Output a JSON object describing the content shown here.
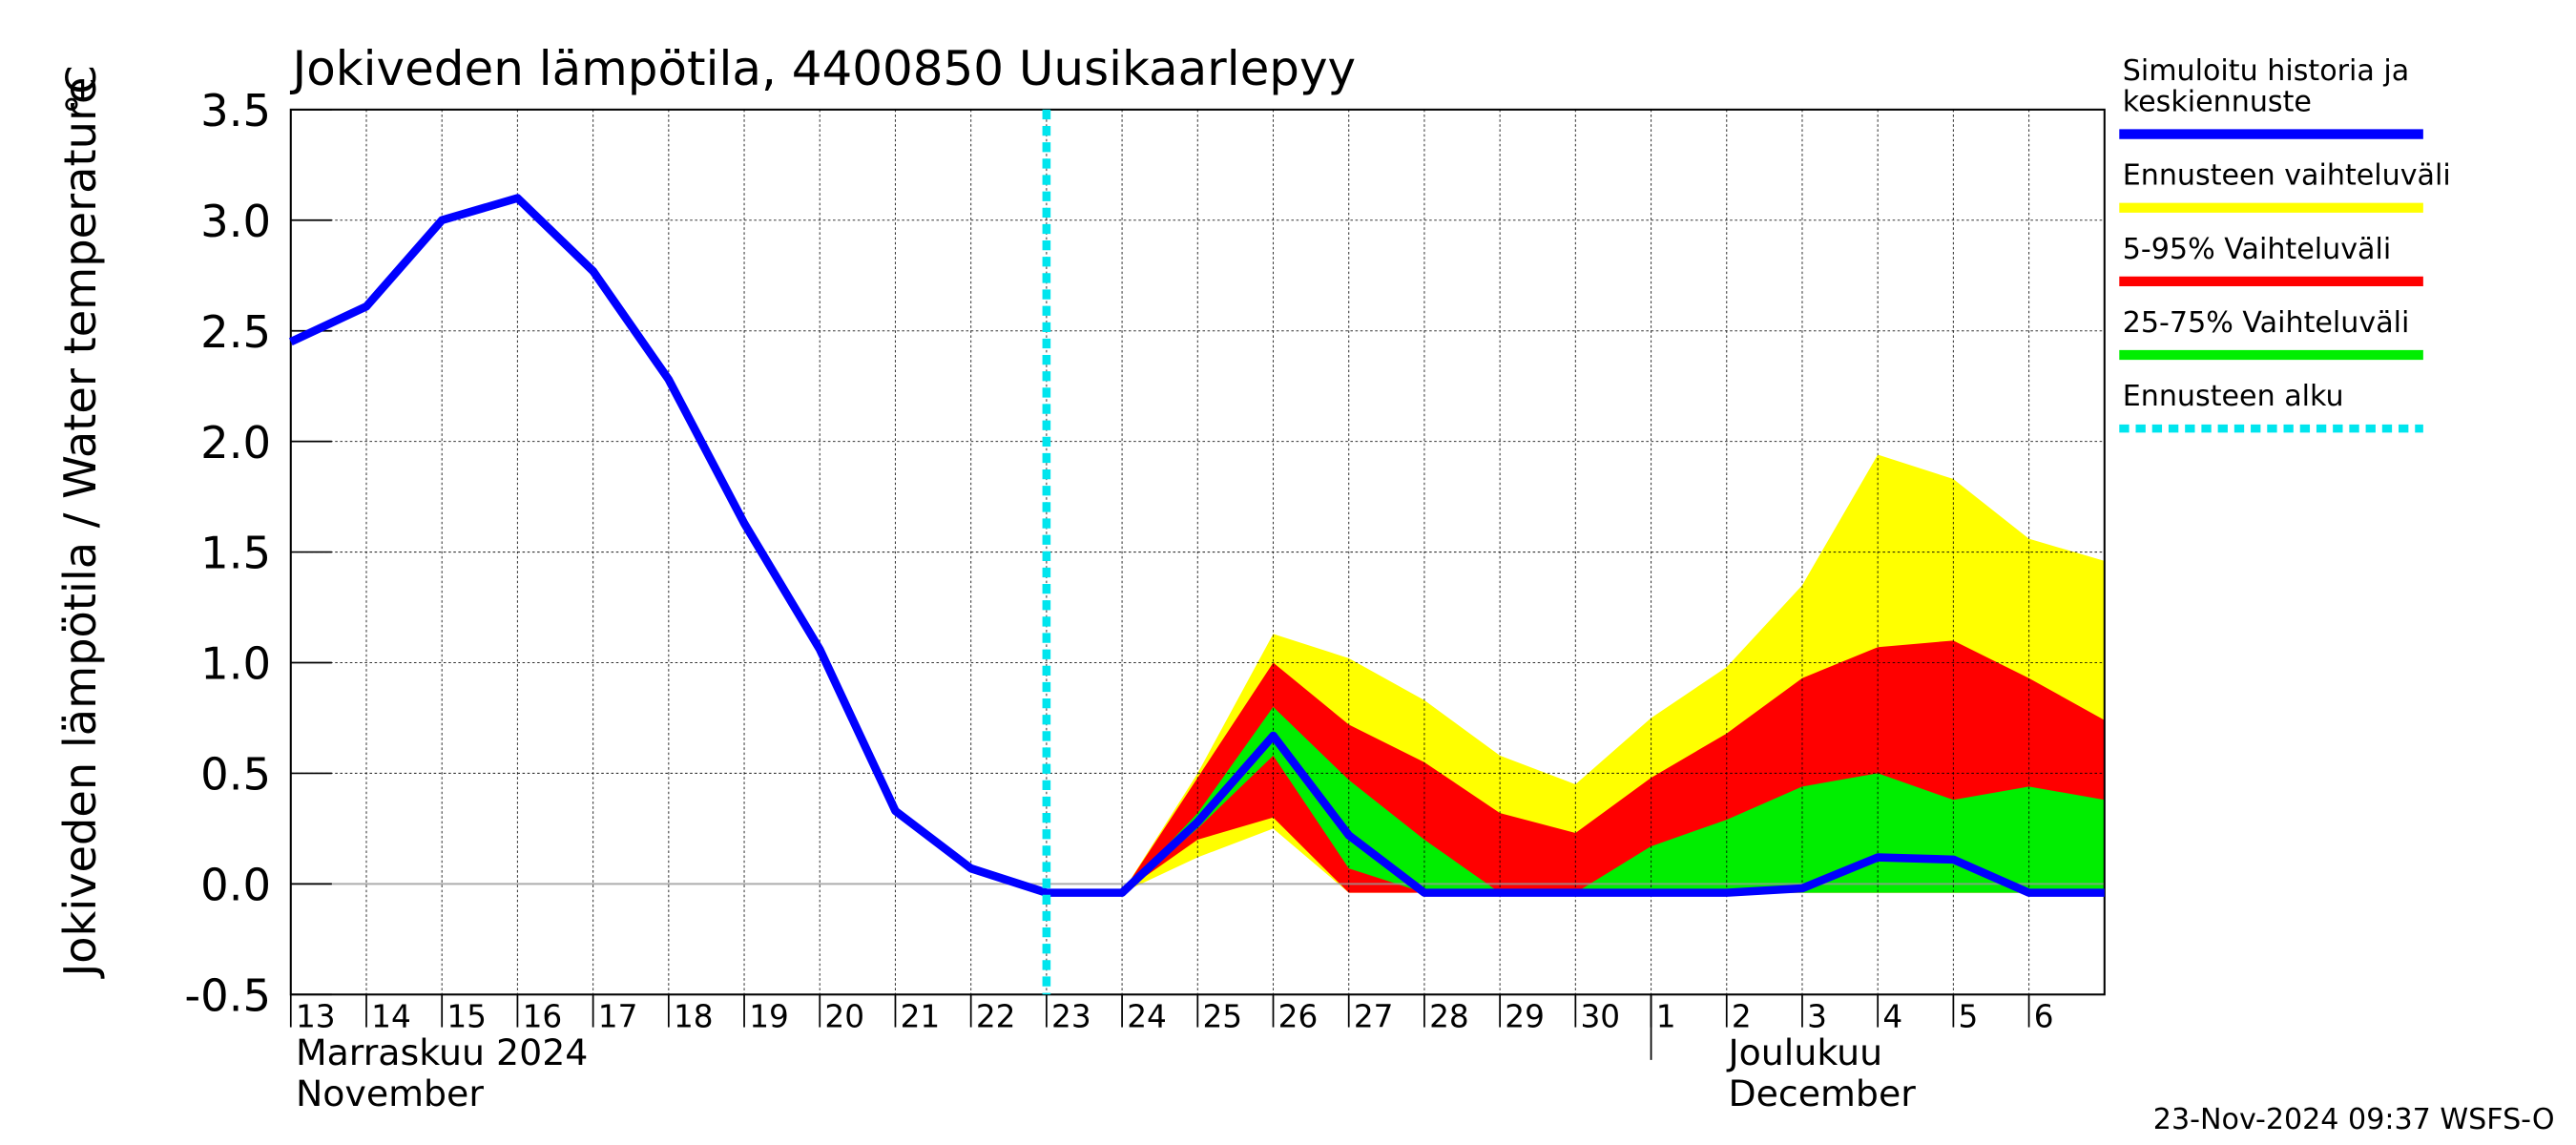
{
  "chart_data": {
    "type": "line-band",
    "title": "Jokiveden lämpötila, 4400850 Uusikaarlepyy",
    "ylabel": "Jokiveden lämpötila / Water temperature",
    "yunit": "°C",
    "month_labels": [
      "Marraskuu 2024",
      "November",
      "Joulukuu",
      "December"
    ],
    "timestamp": "23-Nov-2024 09:37 WSFS-O",
    "x": [
      0,
      1,
      2,
      3,
      4,
      5,
      6,
      7,
      8,
      9,
      10,
      11,
      12,
      13,
      14,
      15,
      16,
      17,
      18,
      19,
      20,
      21,
      22,
      23,
      24
    ],
    "xlim": [
      0,
      24
    ],
    "xticks": [
      {
        "value": 0,
        "label": "13"
      },
      {
        "value": 1,
        "label": "14"
      },
      {
        "value": 2,
        "label": "15"
      },
      {
        "value": 3,
        "label": "16"
      },
      {
        "value": 4,
        "label": "17"
      },
      {
        "value": 5,
        "label": "18"
      },
      {
        "value": 6,
        "label": "19"
      },
      {
        "value": 7,
        "label": "20"
      },
      {
        "value": 8,
        "label": "21"
      },
      {
        "value": 9,
        "label": "22"
      },
      {
        "value": 10,
        "label": "23"
      },
      {
        "value": 11,
        "label": "24"
      },
      {
        "value": 12,
        "label": "25"
      },
      {
        "value": 13,
        "label": "26"
      },
      {
        "value": 14,
        "label": "27"
      },
      {
        "value": 15,
        "label": "28"
      },
      {
        "value": 16,
        "label": "29"
      },
      {
        "value": 17,
        "label": "30"
      },
      {
        "value": 18,
        "label": "1"
      },
      {
        "value": 19,
        "label": "2"
      },
      {
        "value": 20,
        "label": "3"
      },
      {
        "value": 21,
        "label": "4"
      },
      {
        "value": 22,
        "label": "5"
      },
      {
        "value": 23,
        "label": "6"
      }
    ],
    "ylim": [
      -0.5,
      3.5
    ],
    "yticks": [
      -0.5,
      {
        "value": 0,
        "label": "0.0"
      },
      0.5,
      {
        "value": 1,
        "label": "1.0"
      },
      1.5,
      {
        "value": 2,
        "label": "2.0"
      },
      2.5,
      {
        "value": 3,
        "label": "3.0"
      },
      3.5
    ],
    "grid": true,
    "forecast_start": 10,
    "forecast_start_name": "Ennusteen alku",
    "forecast_start_color": "#00e5ee",
    "series": [
      {
        "name": "Ennusteen vaihteluväli",
        "color": "#ffff00",
        "upper": [
          null,
          null,
          null,
          null,
          null,
          null,
          null,
          null,
          null,
          null,
          null,
          -0.04,
          0.5,
          1.13,
          1.02,
          0.83,
          0.58,
          0.45,
          0.75,
          0.98,
          1.35,
          1.94,
          1.83,
          1.56,
          1.46
        ],
        "lower": [
          null,
          null,
          null,
          null,
          null,
          null,
          null,
          null,
          null,
          null,
          null,
          -0.04,
          0.12,
          0.25,
          -0.04,
          -0.04,
          -0.04,
          -0.04,
          -0.04,
          -0.04,
          -0.04,
          -0.04,
          -0.04,
          -0.04,
          -0.04
        ]
      },
      {
        "name": "5-95% Vaihteluväli",
        "color": "#ff0000",
        "upper": [
          null,
          null,
          null,
          null,
          null,
          null,
          null,
          null,
          null,
          null,
          null,
          -0.04,
          0.48,
          1.0,
          0.72,
          0.55,
          0.32,
          0.23,
          0.48,
          0.68,
          0.93,
          1.07,
          1.1,
          0.93,
          0.74
        ],
        "lower": [
          null,
          null,
          null,
          null,
          null,
          null,
          null,
          null,
          null,
          null,
          null,
          -0.04,
          0.2,
          0.3,
          -0.04,
          -0.04,
          -0.04,
          -0.04,
          -0.04,
          -0.04,
          -0.04,
          -0.04,
          -0.04,
          -0.04,
          -0.04
        ]
      },
      {
        "name": "25-75% Vaihteluväli",
        "color": "#00ee00",
        "upper": [
          null,
          null,
          null,
          null,
          null,
          null,
          null,
          null,
          null,
          null,
          null,
          -0.04,
          0.32,
          0.8,
          0.47,
          0.2,
          -0.04,
          -0.04,
          0.17,
          0.29,
          0.44,
          0.5,
          0.38,
          0.44,
          0.38
        ],
        "lower": [
          null,
          null,
          null,
          null,
          null,
          null,
          null,
          null,
          null,
          null,
          null,
          -0.04,
          0.25,
          0.58,
          0.07,
          -0.04,
          -0.04,
          -0.04,
          -0.04,
          -0.04,
          -0.04,
          -0.04,
          -0.04,
          -0.04,
          -0.04
        ]
      },
      {
        "name": "Simuloitu historia ja\nkeskiennuste",
        "color": "#0000ff",
        "values": [
          2.45,
          2.61,
          3.0,
          3.1,
          2.77,
          2.28,
          1.63,
          1.06,
          0.33,
          0.07,
          -0.04,
          -0.04,
          0.28,
          0.67,
          0.22,
          -0.04,
          -0.04,
          -0.04,
          -0.04,
          -0.04,
          -0.02,
          0.12,
          0.11,
          -0.04,
          -0.04
        ]
      }
    ]
  }
}
